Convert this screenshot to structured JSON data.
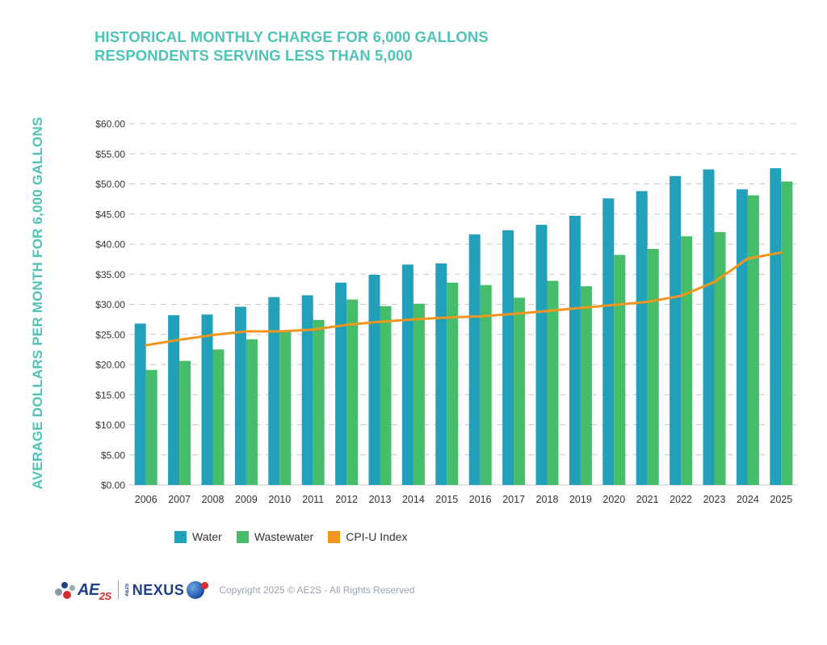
{
  "title_line1": "HISTORICAL MONTHLY CHARGE FOR 6,000 GALLONS",
  "title_line2": "RESPONDENTS SERVING LESS THAN 5,000",
  "footer": {
    "logo_text": "AE",
    "logo_sub": "2S",
    "nexus_prefix": "AE2S",
    "nexus_text": "NEXUS",
    "copyright": "Copyright 2025 © AE2S - All Rights Reserved"
  },
  "chart_data": {
    "type": "bar",
    "ylabel": "AVERAGE DOLLARS PER MONTH FOR 6,000 GALLONS",
    "ylim": [
      0,
      60
    ],
    "y_ticks": [
      "$0.00",
      "$5.00",
      "$10.00",
      "$15.00",
      "$20.00",
      "$25.00",
      "$30.00",
      "$35.00",
      "$40.00",
      "$45.00",
      "$50.00",
      "$55.00",
      "$60.00"
    ],
    "grid": "horizontal dashed",
    "legend_position": "bottom",
    "categories": [
      "2006",
      "2007",
      "2008",
      "2009",
      "2010",
      "2011",
      "2012",
      "2013",
      "2014",
      "2015",
      "2016",
      "2017",
      "2018",
      "2019",
      "2020",
      "2021",
      "2022",
      "2023",
      "2024",
      "2025"
    ],
    "series": [
      {
        "name": "Water",
        "type": "bar",
        "color": "#22a0b9",
        "values": [
          26.8,
          28.2,
          28.3,
          29.6,
          31.2,
          31.5,
          33.6,
          34.9,
          36.6,
          36.8,
          41.6,
          42.3,
          43.2,
          44.7,
          47.6,
          48.8,
          51.3,
          52.4,
          49.1,
          52.6
        ]
      },
      {
        "name": "Wastewater",
        "type": "bar",
        "color": "#45bd6a",
        "values": [
          19.1,
          20.6,
          22.5,
          24.2,
          25.5,
          27.4,
          30.8,
          29.7,
          30.1,
          33.6,
          33.2,
          31.1,
          33.9,
          33.0,
          38.2,
          39.2,
          41.3,
          42.0,
          48.1,
          50.4
        ]
      },
      {
        "name": "CPI-U Index",
        "type": "line",
        "color": "#f0961e",
        "values": [
          23.2,
          24.1,
          24.9,
          25.5,
          25.5,
          25.8,
          26.6,
          27.1,
          27.5,
          27.8,
          28.0,
          28.4,
          28.9,
          29.4,
          29.9,
          30.4,
          31.4,
          33.7,
          37.6,
          38.6
        ]
      }
    ]
  }
}
